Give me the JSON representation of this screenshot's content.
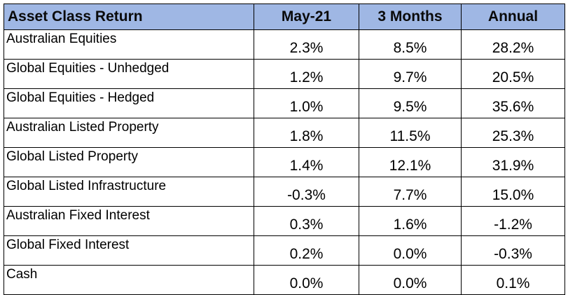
{
  "table": {
    "headers": [
      "Asset Class Return",
      "May-21",
      "3 Months",
      "Annual"
    ],
    "rows": [
      {
        "name": "Australian Equities",
        "may21": "2.3%",
        "three_months": "8.5%",
        "annual": "28.2%"
      },
      {
        "name": "Global Equities - Unhedged",
        "may21": "1.2%",
        "three_months": "9.7%",
        "annual": "20.5%"
      },
      {
        "name": "Global Equities - Hedged",
        "may21": "1.0%",
        "three_months": "9.5%",
        "annual": "35.6%"
      },
      {
        "name": "Australian Listed Property",
        "may21": "1.8%",
        "three_months": "11.5%",
        "annual": "25.3%"
      },
      {
        "name": "Global Listed Property",
        "may21": "1.4%",
        "three_months": "12.1%",
        "annual": "31.9%"
      },
      {
        "name": "Global Listed Infrastructure",
        "may21": "-0.3%",
        "three_months": "7.7%",
        "annual": "15.0%"
      },
      {
        "name": "Australian Fixed Interest",
        "may21": "0.3%",
        "three_months": "1.6%",
        "annual": "-1.2%"
      },
      {
        "name": "Global Fixed Interest",
        "may21": "0.2%",
        "three_months": "0.0%",
        "annual": "-0.3%"
      },
      {
        "name": "Cash",
        "may21": "0.0%",
        "three_months": "0.0%",
        "annual": "0.1%"
      }
    ]
  },
  "colors": {
    "header_background": "#9fb7e4",
    "border": "#000000",
    "text": "#000000"
  }
}
